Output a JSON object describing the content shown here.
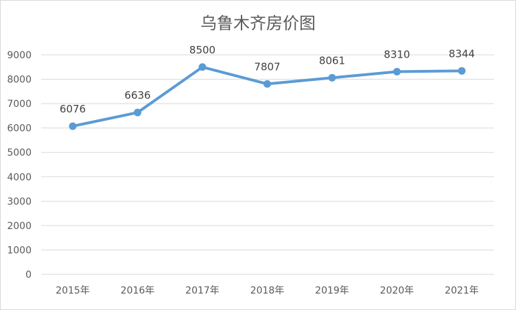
{
  "chart_data": {
    "type": "line",
    "title": "乌鲁木齐房价图",
    "categories": [
      "2015年",
      "2016年",
      "2017年",
      "2018年",
      "2019年",
      "2020年",
      "2021年"
    ],
    "series": [
      {
        "values": [
          6076,
          6636,
          8500,
          7807,
          8061,
          8310,
          8344
        ]
      }
    ],
    "ylim": [
      0,
      9000
    ],
    "yticks": [
      0,
      1000,
      2000,
      3000,
      4000,
      5000,
      6000,
      7000,
      8000,
      9000
    ],
    "grid": true,
    "data_labels": true,
    "line_color": "#5b9bd5",
    "grid_color": "#d9d9d9",
    "text_color": "#595959"
  }
}
